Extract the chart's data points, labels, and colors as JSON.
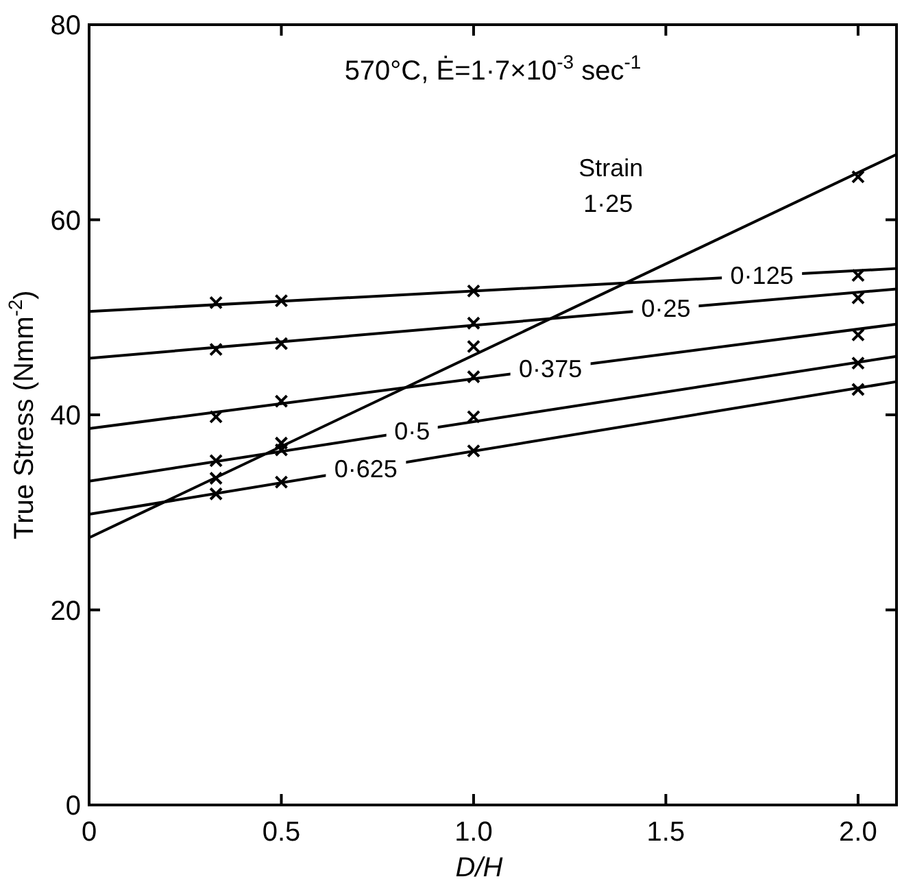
{
  "chart_data": {
    "type": "line",
    "title": "570°C, Ė=1·7×10$^{-3}$ sec$^{-1}$",
    "xlabel": "D/H",
    "ylabel": "True Stress (Nmm$^{-2}$)",
    "annotations": [
      "Strain"
    ],
    "xlim": [
      0,
      2.1
    ],
    "ylim": [
      0,
      80
    ],
    "xticks": [
      0,
      0.5,
      {
        "value": 1,
        "label": "1.0"
      },
      1.5,
      {
        "value": 2,
        "label": "2.0"
      }
    ],
    "yticks": [
      0,
      20,
      40,
      60,
      80
    ],
    "grid": false,
    "series": [
      {
        "name": "1·25",
        "color": "#000000",
        "marker": "none",
        "line_style": "solid",
        "x": [
          0,
          2.1
        ],
        "values": [
          27.4,
          66.7
        ]
      },
      {
        "name": "0·125",
        "color": "#000000",
        "marker": "none",
        "line_style": "solid",
        "x": [
          0,
          2.1
        ],
        "values": [
          50.6,
          55.0
        ]
      },
      {
        "name": "0·25",
        "color": "#000000",
        "marker": "none",
        "line_style": "solid",
        "x": [
          0,
          2.1
        ],
        "values": [
          45.8,
          52.9
        ]
      },
      {
        "name": "0·375",
        "color": "#000000",
        "marker": "none",
        "line_style": "solid",
        "x": [
          0,
          2.1
        ],
        "values": [
          38.6,
          49.3
        ]
      },
      {
        "name": "0·5",
        "color": "#000000",
        "marker": "none",
        "line_style": "solid",
        "x": [
          0,
          2.1
        ],
        "values": [
          33.2,
          46.0
        ]
      },
      {
        "name": "0·625",
        "color": "#000000",
        "marker": "none",
        "line_style": "solid",
        "x": [
          0,
          2.1
        ],
        "values": [
          29.8,
          43.4
        ]
      },
      {
        "type": "scatter",
        "color": "#000000",
        "marker": "cross",
        "x": [
          0.33,
          0.5,
          1,
          2
        ],
        "values": [
          33.5,
          37.1,
          47.0,
          64.4
        ]
      },
      {
        "type": "scatter",
        "color": "#000000",
        "marker": "cross",
        "x": [
          0.33,
          0.5,
          1,
          2
        ],
        "values": [
          51.5,
          51.7,
          52.7,
          54.3
        ]
      },
      {
        "type": "scatter",
        "color": "#000000",
        "marker": "cross",
        "x": [
          0.33,
          0.5,
          1,
          2
        ],
        "values": [
          46.7,
          47.3,
          49.4,
          52.0
        ]
      },
      {
        "type": "scatter",
        "color": "#000000",
        "marker": "cross",
        "x": [
          0.33,
          0.5,
          1,
          2
        ],
        "values": [
          39.8,
          41.4,
          43.9,
          48.2
        ]
      },
      {
        "type": "scatter",
        "color": "#000000",
        "marker": "cross",
        "x": [
          0.33,
          0.5,
          1,
          2
        ],
        "values": [
          35.3,
          36.4,
          39.8,
          45.3
        ]
      },
      {
        "type": "scatter",
        "color": "#000000",
        "marker": "cross",
        "x": [
          0.33,
          0.5,
          1,
          2
        ],
        "values": [
          31.9,
          33.1,
          36.3,
          42.6
        ]
      }
    ]
  }
}
